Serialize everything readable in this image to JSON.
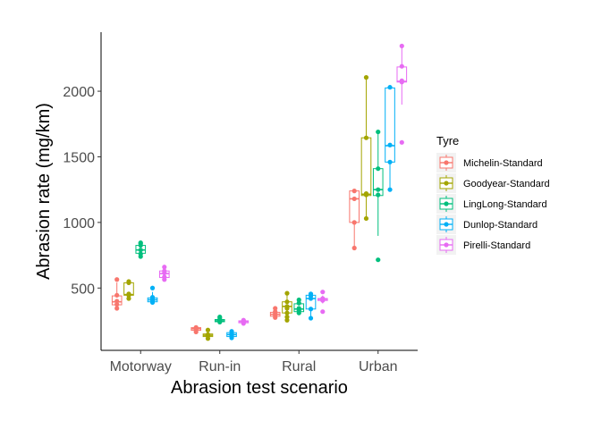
{
  "chart_data": {
    "type": "boxplot",
    "title": "",
    "xlabel": "Abrasion test scenario",
    "ylabel": "Abrasion rate (mg/km)",
    "ylim": [
      25,
      2450
    ],
    "yticks": [
      500,
      1000,
      1500,
      2000
    ],
    "categories": [
      "Motorway",
      "Run-in",
      "Rural",
      "Urban"
    ],
    "legend": {
      "title": "Tyre",
      "position": "right"
    },
    "grid": false,
    "series": [
      {
        "name": "Michelin-Standard",
        "color": "#F8766D",
        "boxes": [
          {
            "q1": 372,
            "median": 395,
            "q3": 440,
            "points": [
              345,
              375,
              400,
              445,
              565
            ]
          },
          {
            "q1": 178,
            "median": 190,
            "q3": 198,
            "points": [
              165,
              180,
              195,
              200
            ]
          },
          {
            "q1": 285,
            "median": 300,
            "q3": 315,
            "points": [
              275,
              295,
              305,
              320,
              345
            ]
          },
          {
            "q1": 1000,
            "median": 1180,
            "q3": 1240,
            "points": [
              805,
              1000,
              1180,
              1240
            ]
          }
        ]
      },
      {
        "name": "Goodyear-Standard",
        "color": "#A3A500",
        "boxes": [
          {
            "q1": 445,
            "median": 450,
            "q3": 540,
            "points": [
              420,
              445,
              455,
              540,
              550
            ]
          },
          {
            "q1": 130,
            "median": 140,
            "q3": 150,
            "points": [
              115,
              135,
              145,
              180
            ]
          },
          {
            "q1": 310,
            "median": 360,
            "q3": 395,
            "points": [
              255,
              280,
              310,
              345,
              360,
              395,
              460
            ]
          },
          {
            "q1": 1205,
            "median": 1215,
            "q3": 1645,
            "points": [
              1030,
              1210,
              1220,
              1645,
              2105
            ]
          }
        ]
      },
      {
        "name": "LingLong-Standard",
        "color": "#00BF7D",
        "boxes": [
          {
            "q1": 765,
            "median": 790,
            "q3": 825,
            "points": [
              740,
              760,
              790,
              825,
              840,
              845
            ]
          },
          {
            "q1": 243,
            "median": 250,
            "q3": 260,
            "points": [
              240,
              250,
              255,
              270,
              280
            ]
          },
          {
            "q1": 320,
            "median": 340,
            "q3": 380,
            "points": [
              310,
              330,
              345,
              385,
              410
            ]
          },
          {
            "q1": 1205,
            "median": 1250,
            "q3": 1410,
            "points": [
              715,
              1210,
              1250,
              1410,
              1690
            ]
          }
        ]
      },
      {
        "name": "Dunlop-Standard",
        "color": "#00B0F6",
        "boxes": [
          {
            "q1": 395,
            "median": 410,
            "q3": 425,
            "points": [
              390,
              405,
              415,
              430,
              500
            ]
          },
          {
            "q1": 130,
            "median": 145,
            "q3": 160,
            "points": [
              120,
              140,
              150,
              170
            ]
          },
          {
            "q1": 340,
            "median": 420,
            "q3": 445,
            "points": [
              270,
              340,
              420,
              440,
              455
            ]
          },
          {
            "q1": 1460,
            "median": 1585,
            "q3": 2025,
            "points": [
              1250,
              1460,
              1590,
              2030
            ]
          }
        ]
      },
      {
        "name": "Pirelli-Standard",
        "color": "#E76BF3",
        "boxes": [
          {
            "q1": 580,
            "median": 610,
            "q3": 630,
            "points": [
              565,
              585,
              615,
              630,
              660
            ]
          },
          {
            "q1": 235,
            "median": 245,
            "q3": 250,
            "points": [
              230,
              240,
              245,
              250,
              255
            ]
          },
          {
            "q1": 405,
            "median": 415,
            "q3": 420,
            "points": [
              320,
              405,
              415,
              420,
              470
            ]
          },
          {
            "q1": 2070,
            "median": 2075,
            "q3": 2185,
            "points": [
              1610,
              2070,
              2080,
              2190,
              2345
            ]
          }
        ]
      }
    ]
  }
}
